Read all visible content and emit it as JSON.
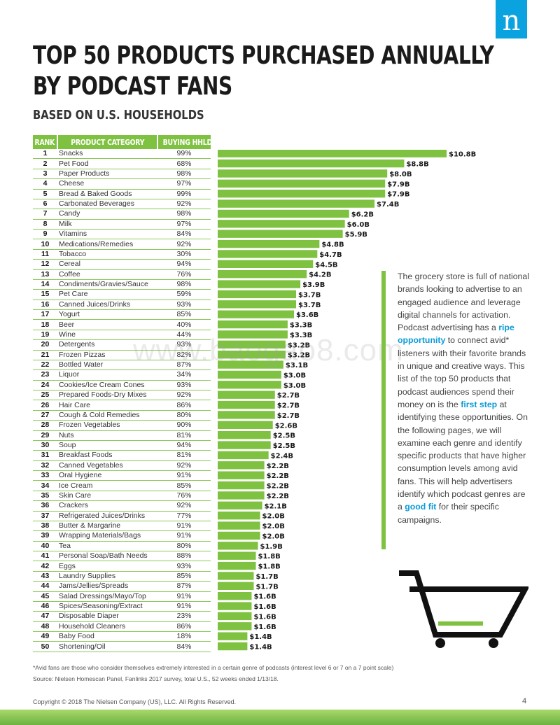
{
  "brand": {
    "logo_letter": "n",
    "accent": "#0aa3e0",
    "green": "#7fc241"
  },
  "title": {
    "line1": "TOP 50 PRODUCTS PURCHASED ANNUALLY",
    "line2": "BY PODCAST FANS"
  },
  "subtitle": "BASED ON U.S. HOUSEHOLDS",
  "table": {
    "headers": {
      "rank": "RANK",
      "category": "PRODUCT CATEGORY",
      "hhlds": "BUYING HHLDs"
    }
  },
  "chart_data": {
    "type": "bar",
    "orientation": "horizontal",
    "grid": false,
    "categories": [
      "Snacks",
      "Pet Food",
      "Paper Products",
      "Cheese",
      "Bread & Baked Goods",
      "Carbonated Beverages",
      "Candy",
      "Milk",
      "Vitamins",
      "Medications/Remedies",
      "Tobacco",
      "Cereal",
      "Coffee",
      "Condiments/Gravies/Sauce",
      "Pet Care",
      "Canned Juices/Drinks",
      "Yogurt",
      "Beer",
      "Wine",
      "Detergents",
      "Frozen Pizzas",
      "Bottled Water",
      "Liquor",
      "Cookies/Ice Cream Cones",
      "Prepared Foods-Dry Mixes",
      "Hair Care",
      "Cough & Cold Remedies",
      "Frozen Vegetables",
      "Nuts",
      "Soup",
      "Breakfast Foods",
      "Canned Vegetables",
      "Oral Hygiene",
      "Ice Cream",
      "Skin Care",
      "Crackers",
      "Refrigerated Juices/Drinks",
      "Butter & Margarine",
      "Wrapping Materials/Bags",
      "Tea",
      "Personal Soap/Bath Needs",
      "Eggs",
      "Laundry Supplies",
      "Jams/Jellies/Spreads",
      "Salad Dressings/Mayo/Top",
      "Spices/Seasoning/Extract",
      "Disposable Diaper",
      "Household Cleaners",
      "Baby Food",
      "Shortening/Oil"
    ],
    "ranks": [
      1,
      2,
      3,
      4,
      5,
      6,
      7,
      8,
      9,
      10,
      11,
      12,
      13,
      14,
      15,
      16,
      17,
      18,
      19,
      20,
      21,
      22,
      23,
      24,
      25,
      26,
      27,
      28,
      29,
      30,
      31,
      32,
      33,
      34,
      35,
      36,
      37,
      38,
      39,
      40,
      41,
      42,
      43,
      44,
      45,
      46,
      47,
      48,
      49,
      50
    ],
    "buying_hhlds": [
      "99%",
      "68%",
      "98%",
      "97%",
      "99%",
      "92%",
      "98%",
      "97%",
      "84%",
      "92%",
      "30%",
      "94%",
      "76%",
      "98%",
      "59%",
      "93%",
      "85%",
      "40%",
      "44%",
      "93%",
      "82%",
      "87%",
      "34%",
      "93%",
      "92%",
      "86%",
      "80%",
      "90%",
      "81%",
      "94%",
      "81%",
      "92%",
      "91%",
      "85%",
      "76%",
      "92%",
      "77%",
      "91%",
      "91%",
      "80%",
      "88%",
      "93%",
      "85%",
      "87%",
      "91%",
      "91%",
      "23%",
      "86%",
      "18%",
      "84%"
    ],
    "values": [
      10.8,
      8.8,
      8.0,
      7.9,
      7.9,
      7.4,
      6.2,
      6.0,
      5.9,
      4.8,
      4.7,
      4.5,
      4.2,
      3.9,
      3.7,
      3.7,
      3.6,
      3.3,
      3.3,
      3.2,
      3.2,
      3.1,
      3.0,
      3.0,
      2.7,
      2.7,
      2.7,
      2.6,
      2.5,
      2.5,
      2.4,
      2.2,
      2.2,
      2.2,
      2.2,
      2.1,
      2.0,
      2.0,
      2.0,
      1.9,
      1.8,
      1.8,
      1.7,
      1.7,
      1.6,
      1.6,
      1.6,
      1.6,
      1.4,
      1.4
    ],
    "value_labels": [
      "$10.8B",
      "$8.8B",
      "$8.0B",
      "$7.9B",
      "$7.9B",
      "$7.4B",
      "$6.2B",
      "$6.0B",
      "$5.9B",
      "$4.8B",
      "$4.7B",
      "$4.5B",
      "$4.2B",
      "$3.9B",
      "$3.7B",
      "$3.7B",
      "$3.6B",
      "$3.3B",
      "$3.3B",
      "$3.2B",
      "$3.2B",
      "$3.1B",
      "$3.0B",
      "$3.0B",
      "$2.7B",
      "$2.7B",
      "$2.7B",
      "$2.6B",
      "$2.5B",
      "$2.5B",
      "$2.4B",
      "$2.2B",
      "$2.2B",
      "$2.2B",
      "$2.2B",
      "$2.1B",
      "$2.0B",
      "$2.0B",
      "$2.0B",
      "$1.9B",
      "$1.8B",
      "$1.8B",
      "$1.7B",
      "$1.7B",
      "$1.6B",
      "$1.6B",
      "$1.6B",
      "$1.6B",
      "$1.4B",
      "$1.4B"
    ],
    "bar_color": "#7fc241"
  },
  "side_text": {
    "p1": "The grocery store is full of national brands looking to advertise to an engaged audience and leverage digital channels for activation. Podcast advertising has a ",
    "hl1": "ripe opportunity",
    "p2": " to connect avid* listeners with their favorite brands in unique and creative ways. This list of the top 50 products that podcast audiences spend their money on is the ",
    "hl2": "first step",
    "p3": " at identifying these opportunities. On the following pages, we will examine each genre and identify specific products that have higher consumption levels among avid fans. This will help advertisers identify which podcast genres are a ",
    "hl3": "good fit",
    "p4": " for their specific campaigns."
  },
  "footnote": "*Avid fans are those who consider themselves extremely interested in a certain genre of podcasts (interest level 6 or 7 on a 7 point scale)",
  "source": "Source: Nielsen Homescan Panel, Fanlinks 2017 survey, total U.S., 52 weeks ended 1/13/18.",
  "copyright": "Copyright © 2018 The Nielsen Company (US), LLC. All Rights Reserved.",
  "page_number": "4",
  "watermark": "www.baogao8.com",
  "icons": {
    "cart": "shopping-cart-icon"
  }
}
